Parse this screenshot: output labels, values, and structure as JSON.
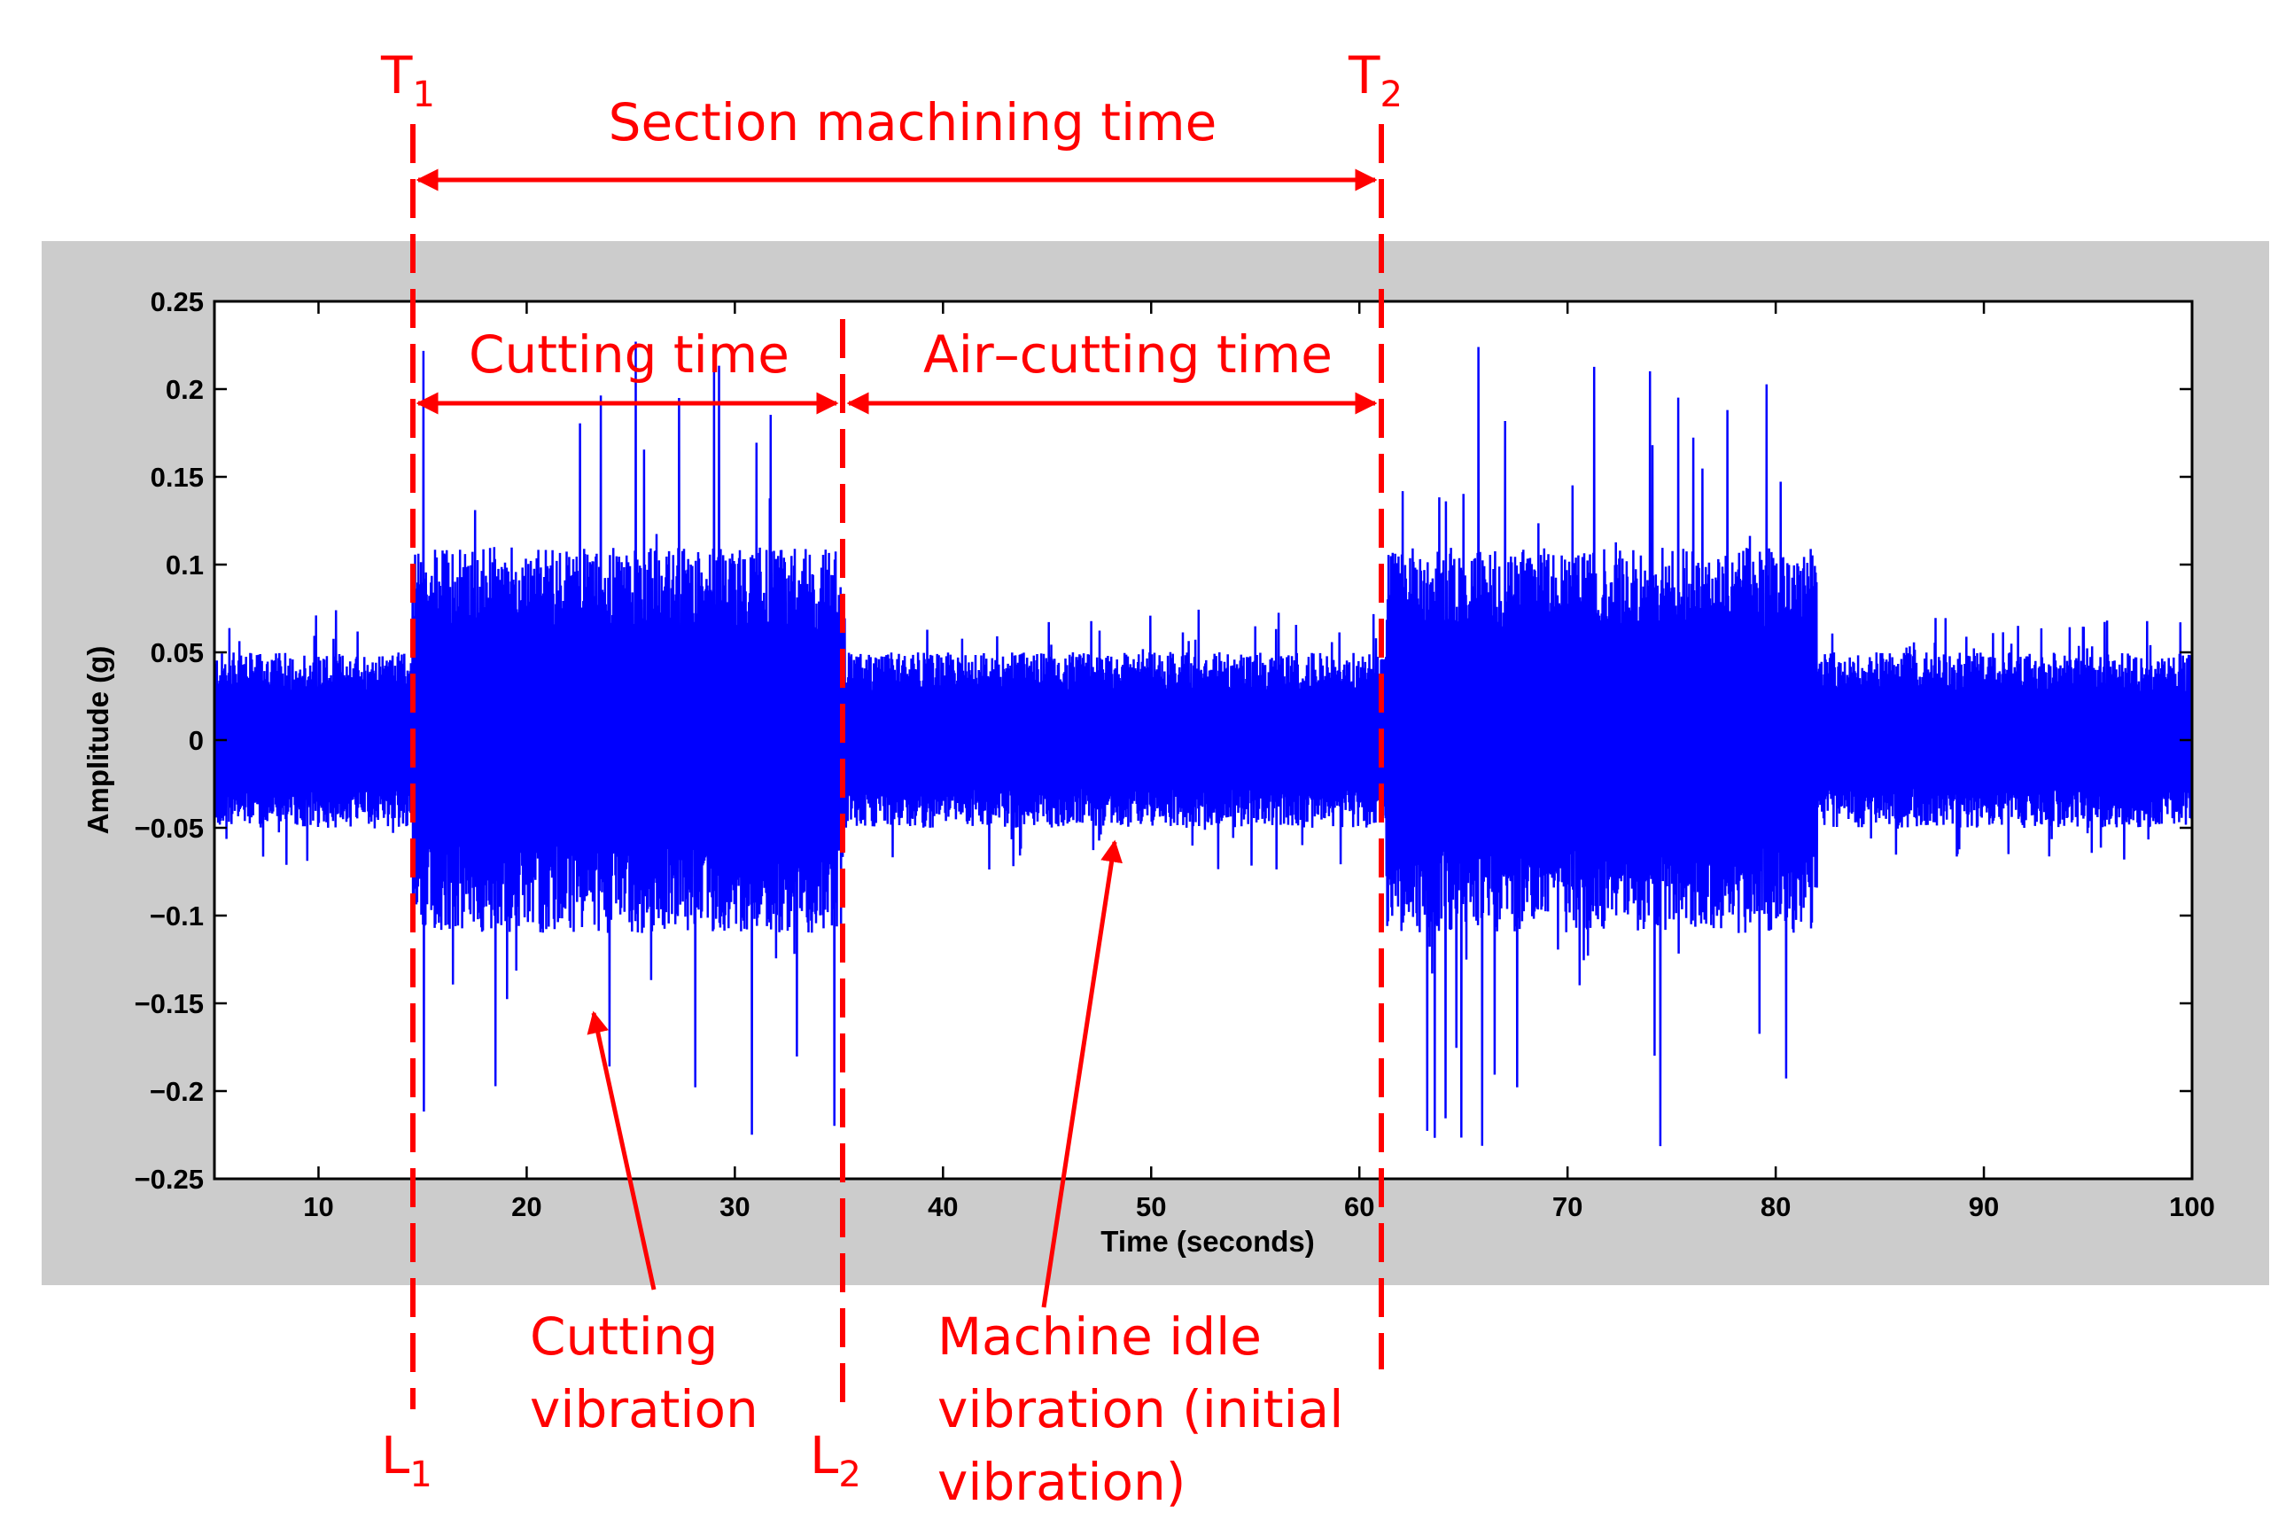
{
  "chart_data": {
    "type": "line",
    "title": "",
    "xlabel": "Time (seconds)",
    "ylabel": "Amplitude (g)",
    "xlim": [
      5,
      100
    ],
    "ylim": [
      -0.25,
      0.25
    ],
    "x_ticks": [
      10,
      20,
      30,
      40,
      50,
      60,
      70,
      80,
      90,
      100
    ],
    "x_tick_labels": [
      "10",
      "20",
      "30",
      "40",
      "50",
      "60",
      "70",
      "80",
      "90",
      "100"
    ],
    "y_ticks": [
      0.25,
      0.2,
      0.15,
      0.1,
      0.05,
      0,
      -0.05,
      -0.1,
      -0.15,
      -0.2,
      -0.25
    ],
    "y_tick_labels": [
      "0.25",
      "0.2",
      "0.15",
      "0.1",
      "0.05",
      "0",
      "−0.05",
      "−0.1",
      "−0.15",
      "−0.2",
      "−0.25"
    ],
    "grid": false,
    "series_color": "#0000ff",
    "signal_segments": [
      {
        "x_start": 5.0,
        "x_end": 14.5,
        "envelope": 0.05,
        "peak": 0.075
      },
      {
        "x_start": 14.5,
        "x_end": 35.2,
        "envelope": 0.11,
        "peak": 0.23
      },
      {
        "x_start": 35.2,
        "x_end": 61.3,
        "envelope": 0.05,
        "peak": 0.075
      },
      {
        "x_start": 61.3,
        "x_end": 82.0,
        "envelope": 0.11,
        "peak": 0.235
      },
      {
        "x_start": 82.0,
        "x_end": 100.0,
        "envelope": 0.05,
        "peak": 0.07
      }
    ],
    "markers": [
      {
        "name": "T1",
        "x": 14.5
      },
      {
        "name": "L2",
        "x": 35.2
      },
      {
        "name": "T2",
        "x": 61.3
      }
    ],
    "annotation_color": "#ff0000",
    "annotations": {
      "t1": {
        "main": "T",
        "sub": "1"
      },
      "t2": {
        "main": "T",
        "sub": "2"
      },
      "l1": {
        "main": "L",
        "sub": "1"
      },
      "l2": {
        "main": "L",
        "sub": "2"
      },
      "section_machining_time": "Section machining time",
      "cutting_time": "Cutting time",
      "air_cutting_time": "Air–cutting time",
      "cutting_vibration": [
        "Cutting",
        "vibration"
      ],
      "idle_vibration": [
        "Machine idle",
        "vibration (initial",
        "vibration)"
      ]
    }
  }
}
